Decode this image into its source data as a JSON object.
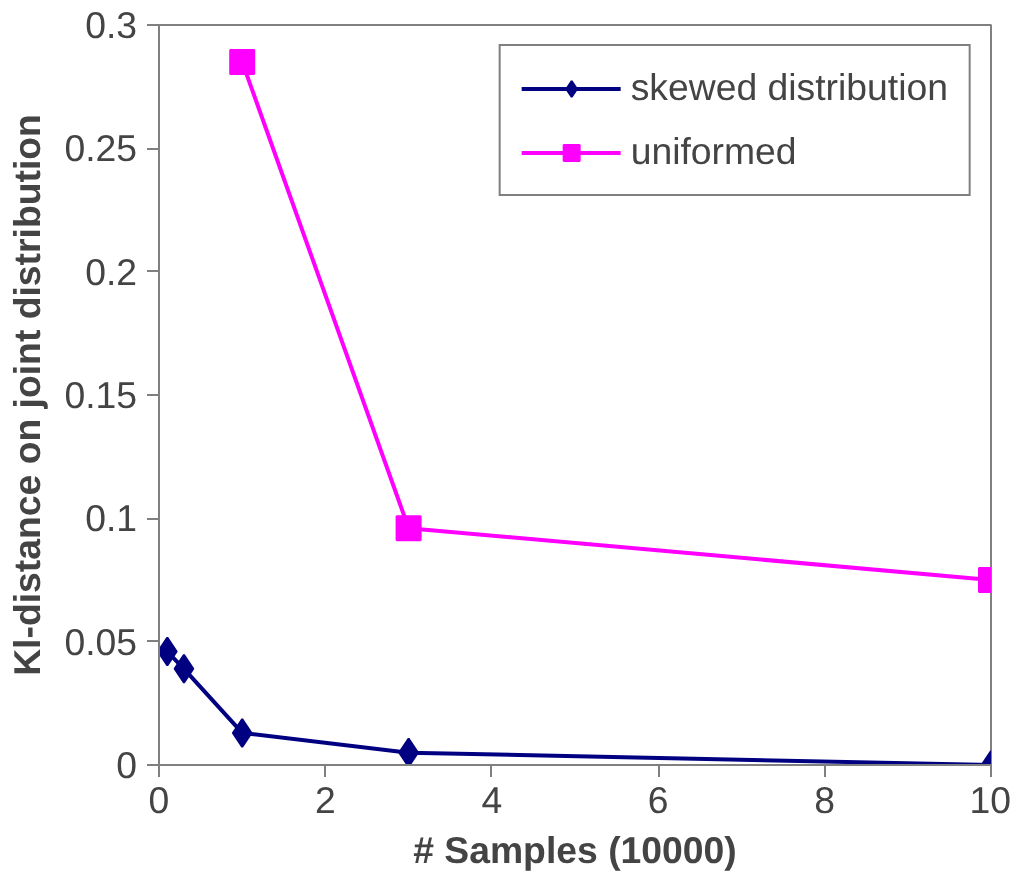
{
  "chart_data": {
    "type": "line",
    "xlabel": "# Samples (10000)",
    "ylabel": "Kl-distance on joint distribution",
    "xlim": [
      0,
      10
    ],
    "ylim": [
      0,
      0.3
    ],
    "xticks": [
      0,
      2,
      4,
      6,
      8,
      10
    ],
    "yticks": [
      0,
      0.05,
      0.1,
      0.15,
      0.2,
      0.25,
      0.3
    ],
    "grid": false,
    "legend": "top right",
    "series": [
      {
        "name": "skewed distribution",
        "color": "#000080",
        "marker": "diamond",
        "x": [
          0.1,
          0.3,
          1,
          3,
          10
        ],
        "values": [
          0.046,
          0.039,
          0.013,
          0.005,
          0.0
        ]
      },
      {
        "name": "uniformed",
        "color": "#ff00ff",
        "marker": "square",
        "x": [
          1,
          3,
          10
        ],
        "values": [
          0.285,
          0.096,
          0.075
        ]
      }
    ]
  }
}
